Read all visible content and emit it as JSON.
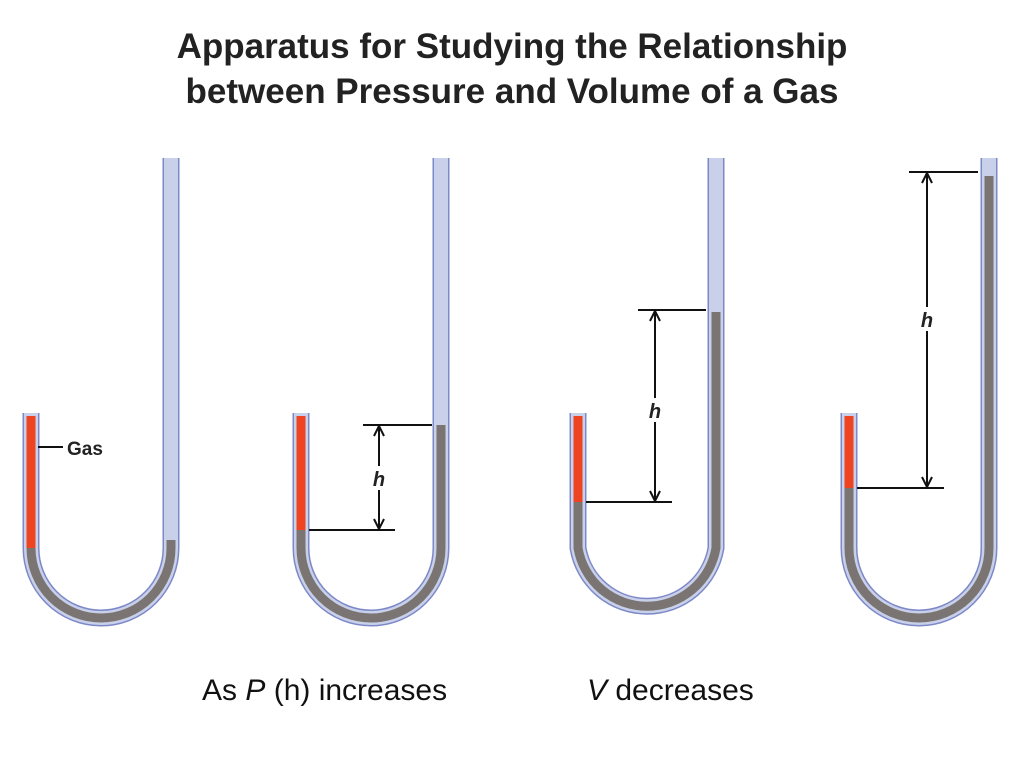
{
  "title": {
    "line1": "Apparatus for Studying the Relationship",
    "line2": "between Pressure and Volume of a Gas"
  },
  "labels": {
    "gas": "Gas",
    "height": "h"
  },
  "caption": {
    "left_prefix": "As ",
    "left_var": "P",
    "left_suffix": " (h) increases",
    "right_var": "V",
    "right_suffix": " decreases"
  },
  "colors": {
    "tube_glass": "#c8d0ea",
    "tube_outline": "#7d88c8",
    "mercury": "#7a7472",
    "gas": "#ee4422",
    "text": "#111111"
  }
}
